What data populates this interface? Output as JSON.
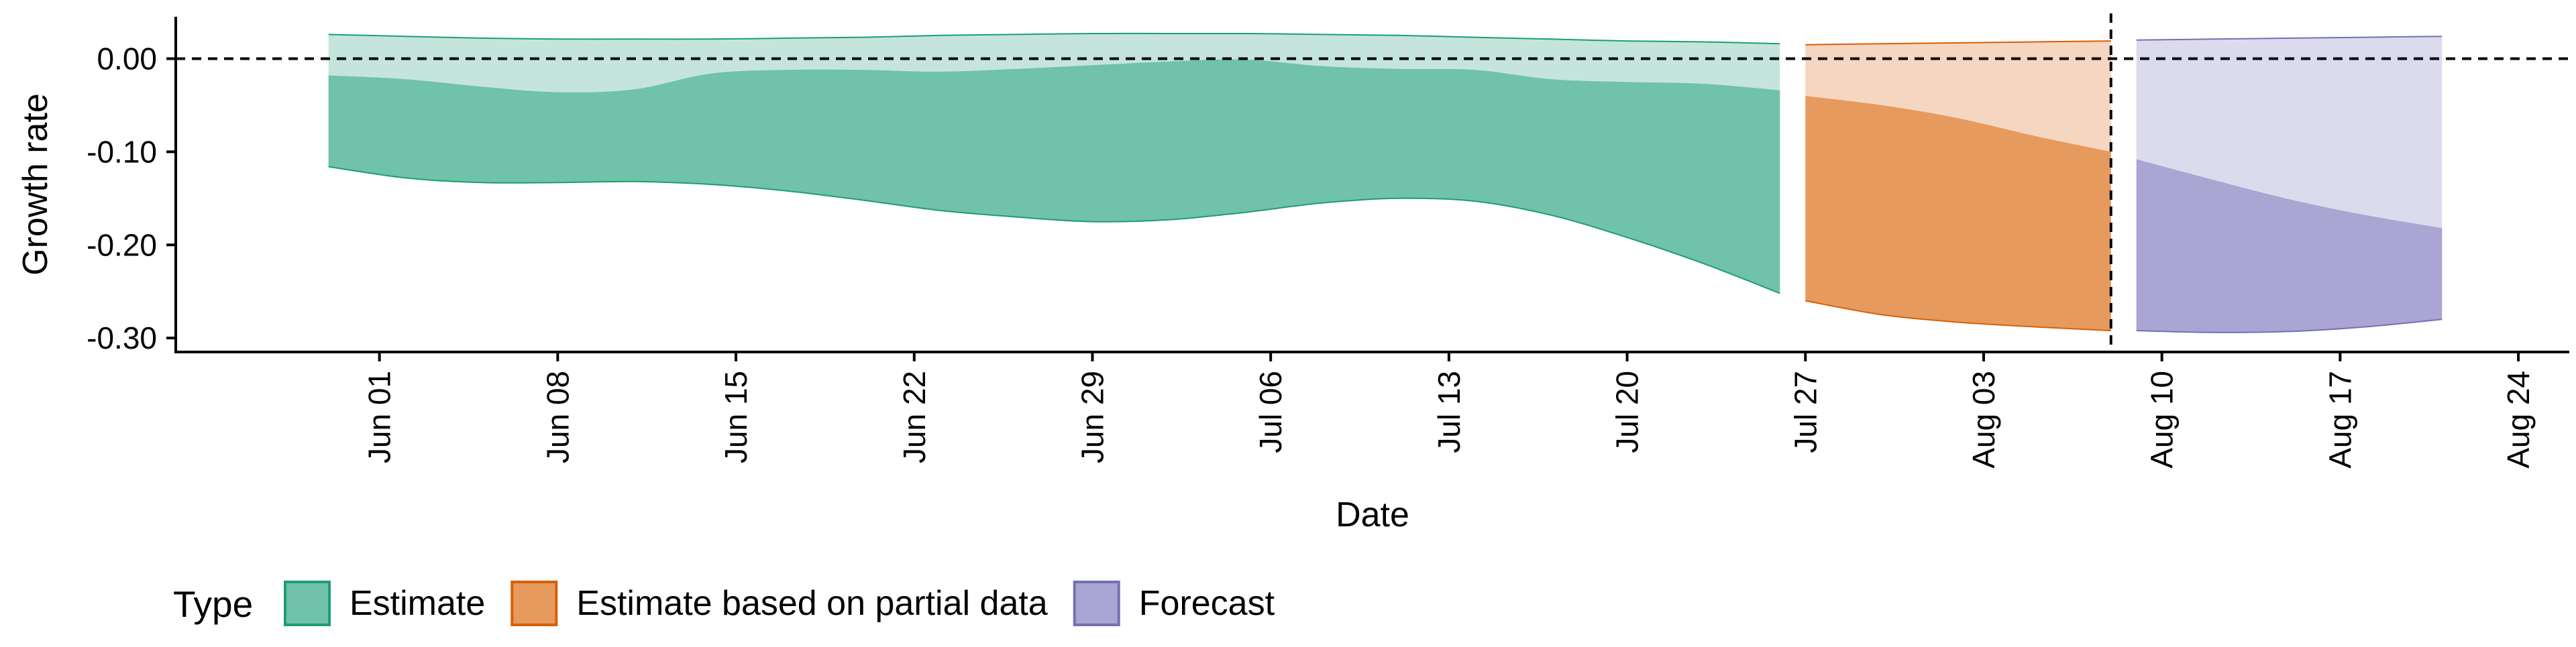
{
  "chart_data": {
    "type": "area",
    "xlabel": "Date",
    "ylabel": "Growth rate",
    "ylim": [
      -0.315,
      0.045
    ],
    "xlim": [
      "2020-05-24",
      "2020-08-26"
    ],
    "y_ticks": [
      {
        "value": 0.0,
        "label": "0.00"
      },
      {
        "value": -0.1,
        "label": "-0.10"
      },
      {
        "value": -0.2,
        "label": "-0.20"
      },
      {
        "value": -0.3,
        "label": "-0.30"
      }
    ],
    "x_ticks": [
      {
        "date": "2020-06-01",
        "label": "Jun 01"
      },
      {
        "date": "2020-06-08",
        "label": "Jun 08"
      },
      {
        "date": "2020-06-15",
        "label": "Jun 15"
      },
      {
        "date": "2020-06-22",
        "label": "Jun 22"
      },
      {
        "date": "2020-06-29",
        "label": "Jun 29"
      },
      {
        "date": "2020-07-06",
        "label": "Jul 06"
      },
      {
        "date": "2020-07-13",
        "label": "Jul 13"
      },
      {
        "date": "2020-07-20",
        "label": "Jul 20"
      },
      {
        "date": "2020-07-27",
        "label": "Jul 27"
      },
      {
        "date": "2020-08-03",
        "label": "Aug 03"
      },
      {
        "date": "2020-08-10",
        "label": "Aug 10"
      },
      {
        "date": "2020-08-17",
        "label": "Aug 17"
      },
      {
        "date": "2020-08-24",
        "label": "Aug 24"
      }
    ],
    "reference_lines": {
      "horizontal_y": 0.0,
      "vertical_date": "2020-08-08",
      "style": "dashed"
    },
    "grid": false,
    "legend": {
      "title": "Type",
      "position": "bottom"
    },
    "series": [
      {
        "name": "Estimate",
        "color": "#1b9e77",
        "fill_inner": "#70c2aa",
        "fill_outer": "#c5e5dc",
        "dates": [
          "2020-05-30",
          "2020-06-02",
          "2020-06-05",
          "2020-06-08",
          "2020-06-11",
          "2020-06-14",
          "2020-06-17",
          "2020-06-20",
          "2020-06-23",
          "2020-06-26",
          "2020-06-29",
          "2020-07-02",
          "2020-07-05",
          "2020-07-08",
          "2020-07-11",
          "2020-07-14",
          "2020-07-17",
          "2020-07-20",
          "2020-07-23",
          "2020-07-26"
        ],
        "upper_outer": [
          0.026,
          0.024,
          0.022,
          0.021,
          0.021,
          0.021,
          0.022,
          0.023,
          0.025,
          0.026,
          0.027,
          0.027,
          0.027,
          0.026,
          0.025,
          0.023,
          0.021,
          0.019,
          0.018,
          0.016
        ],
        "upper_inner": [
          -0.018,
          -0.022,
          -0.03,
          -0.036,
          -0.033,
          -0.016,
          -0.012,
          -0.012,
          -0.014,
          -0.011,
          -0.007,
          -0.003,
          -0.001,
          -0.008,
          -0.011,
          -0.012,
          -0.022,
          -0.025,
          -0.027,
          -0.034
        ],
        "lower": [
          -0.116,
          -0.128,
          -0.133,
          -0.133,
          -0.132,
          -0.135,
          -0.142,
          -0.152,
          -0.163,
          -0.17,
          -0.175,
          -0.173,
          -0.165,
          -0.155,
          -0.15,
          -0.153,
          -0.168,
          -0.192,
          -0.22,
          -0.252
        ]
      },
      {
        "name": "Estimate based on partial data",
        "color": "#d95f02",
        "fill_inner": "#e69a5e",
        "fill_outer": "#f5d6c0",
        "dates": [
          "2020-07-27",
          "2020-07-30",
          "2020-08-02",
          "2020-08-05",
          "2020-08-08"
        ],
        "upper_outer": [
          0.015,
          0.016,
          0.017,
          0.018,
          0.019
        ],
        "upper_inner": [
          -0.04,
          -0.05,
          -0.064,
          -0.083,
          -0.1
        ],
        "lower": [
          -0.26,
          -0.275,
          -0.283,
          -0.288,
          -0.292
        ]
      },
      {
        "name": "Forecast",
        "color": "#7570b3",
        "fill_inner": "#aaa5d3",
        "fill_outer": "#dcdbed",
        "dates": [
          "2020-08-09",
          "2020-08-12",
          "2020-08-15",
          "2020-08-18",
          "2020-08-21"
        ],
        "upper_outer": [
          0.02,
          0.021,
          0.022,
          0.023,
          0.024
        ],
        "upper_inner": [
          -0.108,
          -0.13,
          -0.151,
          -0.168,
          -0.182
        ],
        "lower": [
          -0.292,
          -0.294,
          -0.293,
          -0.288,
          -0.28
        ]
      }
    ]
  }
}
